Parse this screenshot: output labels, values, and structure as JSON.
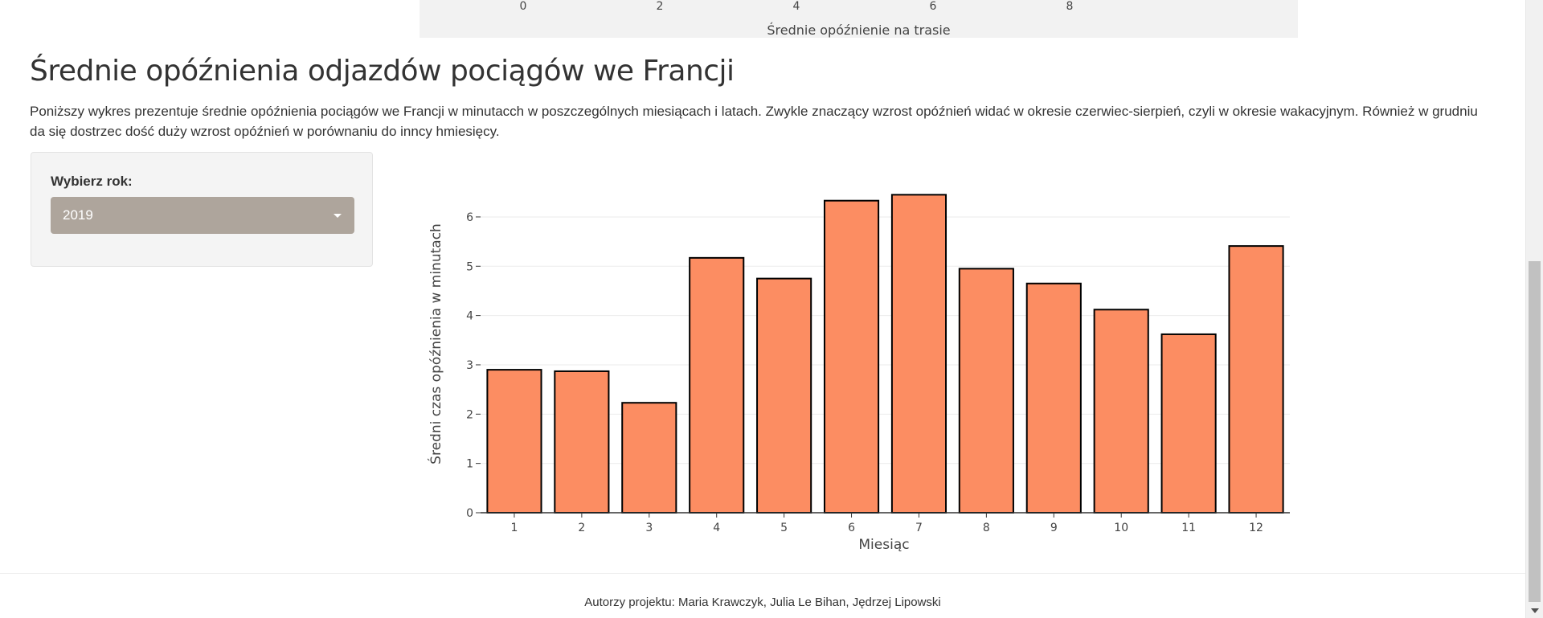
{
  "previous_plot": {
    "ticks": [
      "0",
      "2",
      "4",
      "6",
      "8"
    ],
    "axis_title": "Średnie opóźnienie na trasie"
  },
  "page": {
    "title": "Średnie opóźnienia odjazdów pociągów we Francji",
    "description": "Poniższy wykres prezentuje średnie opóźnienia pociągów we Francji w minutacch w poszczególnych miesiącach i latach. Zwykle znaczący wzrost opóźnień widać w okresie czerwiec-sierpień, czyli w okresie wakacyjnym. Również w grudniu da się dostrzec dość duży wzrost opóźnień w porównaniu do inncy hmiesięcy."
  },
  "sidebar": {
    "year_label": "Wybierz rok:",
    "year_value": "2019"
  },
  "chart_data": {
    "type": "bar",
    "categories": [
      "1",
      "2",
      "3",
      "4",
      "5",
      "6",
      "7",
      "8",
      "9",
      "10",
      "11",
      "12"
    ],
    "values": [
      2.9,
      2.87,
      2.23,
      5.17,
      4.75,
      6.33,
      6.45,
      4.95,
      4.65,
      4.12,
      3.62,
      5.41
    ],
    "xlabel": "Miesiąc",
    "ylabel": "Średni czas opóźnienia w minutach",
    "ylim": [
      0,
      6.7
    ],
    "yticks": [
      0,
      1,
      2,
      3,
      4,
      5,
      6
    ],
    "bar_color": "#fc8d62",
    "bar_outline": "#000000",
    "grid": true
  },
  "footer": {
    "authors": "Autorzy projektu: Maria Krawczyk, Julia Le Bihan, Jędrzej Lipowski"
  },
  "colors": {
    "select_bg": "#aea59c",
    "panel_bg": "#f4f4f4",
    "plot_bg": "#f2f2f2"
  }
}
